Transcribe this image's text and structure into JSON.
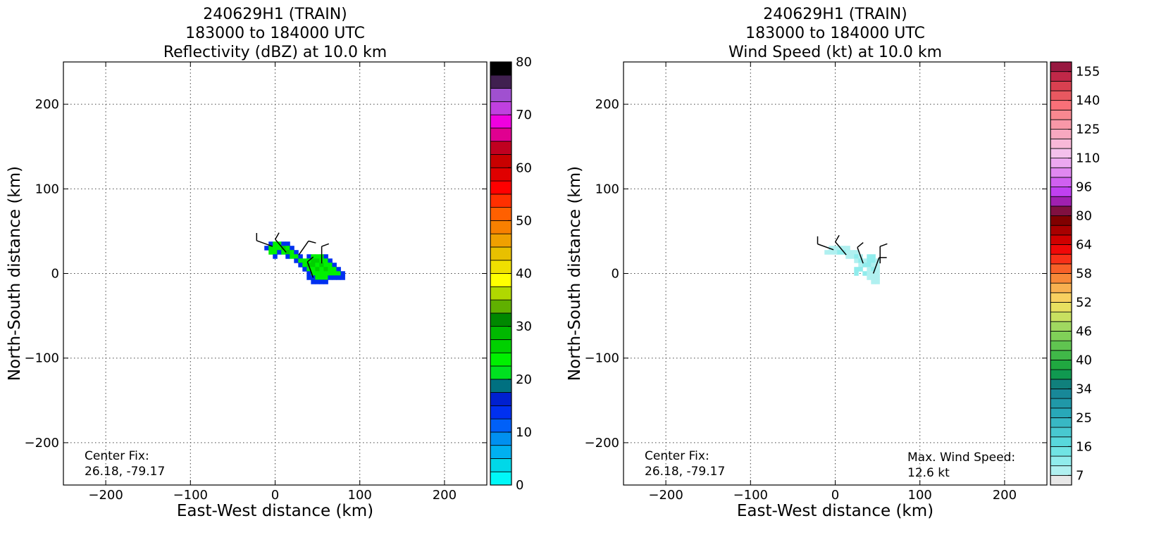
{
  "chart_data": [
    {
      "type": "heatmap",
      "title": [
        "240629H1 (TRAIN)",
        "183000 to 184000 UTC",
        "Reflectivity (dBZ) at 10.0 km"
      ],
      "xlabel": "East-West distance (km)",
      "ylabel": "North-South distance (km)",
      "xlim": [
        -250,
        250
      ],
      "ylim": [
        -250,
        250
      ],
      "xticks": [
        {
          "value": -200,
          "label": "−200"
        },
        {
          "value": -100,
          "label": "−100"
        },
        0,
        100,
        200
      ],
      "yticks": [
        {
          "value": -200,
          "label": "−200"
        },
        {
          "value": -100,
          "label": "−100"
        },
        0,
        100,
        200
      ],
      "grid": true,
      "cells": {
        "x": [
          -5,
          0,
          5,
          10,
          15,
          -10,
          -5,
          0,
          5,
          10,
          15,
          20,
          -5,
          0,
          5,
          10,
          15,
          20,
          25,
          0,
          15,
          20,
          25,
          30,
          40,
          45,
          50,
          55,
          60,
          25,
          30,
          35,
          40,
          45,
          50,
          55,
          60,
          65,
          30,
          35,
          40,
          45,
          50,
          55,
          60,
          65,
          70,
          35,
          40,
          45,
          50,
          55,
          60,
          65,
          70,
          75,
          40,
          45,
          50,
          55,
          60,
          65,
          70,
          75,
          80,
          40,
          45,
          50,
          55,
          60,
          65,
          70,
          75,
          80,
          45,
          50,
          55,
          60
        ],
        "y": [
          35,
          35,
          35,
          35,
          35,
          30,
          30,
          30,
          30,
          30,
          30,
          30,
          25,
          25,
          25,
          25,
          25,
          25,
          25,
          20,
          20,
          20,
          20,
          20,
          20,
          20,
          20,
          20,
          20,
          15,
          15,
          15,
          15,
          15,
          15,
          15,
          15,
          15,
          10,
          10,
          10,
          10,
          10,
          10,
          10,
          10,
          10,
          5,
          5,
          5,
          5,
          5,
          5,
          5,
          5,
          5,
          0,
          0,
          0,
          0,
          0,
          0,
          0,
          0,
          0,
          -5,
          -5,
          -5,
          -5,
          -5,
          -5,
          -5,
          -5,
          -5,
          -10,
          -10,
          -10,
          -10
        ],
        "values": [
          14,
          24,
          24,
          14,
          14,
          14,
          24,
          24,
          24,
          26,
          24,
          14,
          24,
          24,
          14,
          24,
          26,
          24,
          14,
          14,
          14,
          24,
          24,
          14,
          14,
          24,
          24,
          24,
          14,
          14,
          24,
          24,
          24,
          26,
          26,
          24,
          24,
          14,
          14,
          24,
          26,
          26,
          24,
          26,
          24,
          24,
          14,
          14,
          24,
          24,
          26,
          24,
          26,
          24,
          24,
          14,
          14,
          24,
          24,
          24,
          24,
          24,
          24,
          24,
          14,
          14,
          14,
          24,
          24,
          24,
          14,
          14,
          14,
          14,
          14,
          14,
          14,
          14
        ]
      },
      "barbs": {
        "x": [
          -3,
          13,
          28,
          45,
          55
        ],
        "y": [
          32,
          25,
          22,
          -5,
          12
        ],
        "direction": [
          290,
          320,
          35,
          340,
          0
        ],
        "speed": [
          10,
          10,
          10,
          10,
          10
        ]
      },
      "colorbar": {
        "clim": [
          0,
          80
        ],
        "ticks": [
          0,
          10,
          20,
          30,
          40,
          50,
          60,
          70,
          80
        ],
        "colors": [
          "#00f8f8",
          "#00d8e8",
          "#00b0f0",
          "#0090f0",
          "#0060f8",
          "#0030f0",
          "#0020d0",
          "#007080",
          "#00e020",
          "#00f000",
          "#00d000",
          "#00b800",
          "#008800",
          "#60b000",
          "#b0d800",
          "#ffff00",
          "#f0e000",
          "#e8c000",
          "#f0a000",
          "#f88000",
          "#ff6000",
          "#ff3000",
          "#ff0000",
          "#e00000",
          "#c80000",
          "#c00020",
          "#e00090",
          "#f000e0",
          "#c040e0",
          "#a050d0",
          "#402050",
          "#000000"
        ]
      },
      "center_fix": [
        "Center Fix:",
        "26.18, -79.17"
      ]
    },
    {
      "type": "heatmap",
      "title": [
        "240629H1 (TRAIN)",
        "183000 to 184000 UTC",
        "Wind Speed (kt) at 10.0 km"
      ],
      "xlabel": "East-West distance (km)",
      "ylabel": "North-South distance (km)",
      "xlim": [
        -250,
        250
      ],
      "ylim": [
        -250,
        250
      ],
      "xticks": [
        {
          "value": -200,
          "label": "−200"
        },
        {
          "value": -100,
          "label": "−100"
        },
        0,
        100,
        200
      ],
      "yticks": [
        {
          "value": -200,
          "label": "−200"
        },
        {
          "value": -100,
          "label": "−100"
        },
        0,
        100,
        200
      ],
      "grid": true,
      "cells": {
        "x": [
          -5,
          0,
          5,
          10,
          15,
          -10,
          -5,
          0,
          5,
          10,
          15,
          20,
          25,
          15,
          20,
          25,
          30,
          40,
          45,
          25,
          30,
          35,
          40,
          45,
          50,
          30,
          35,
          40,
          45,
          50,
          25,
          30,
          40,
          45,
          50,
          25,
          35,
          40,
          45,
          50,
          40,
          45,
          50,
          45,
          50
        ],
        "y": [
          30,
          30,
          30,
          30,
          30,
          25,
          25,
          25,
          25,
          25,
          25,
          25,
          25,
          20,
          20,
          20,
          20,
          20,
          20,
          15,
          15,
          15,
          15,
          15,
          15,
          10,
          10,
          10,
          10,
          10,
          5,
          5,
          5,
          5,
          5,
          0,
          0,
          0,
          0,
          0,
          -5,
          -5,
          -5,
          -10,
          -10
        ],
        "values": [
          9,
          9,
          9,
          9,
          9,
          8,
          9,
          9,
          11,
          10,
          9,
          9,
          9,
          9,
          9,
          11,
          9,
          10,
          11,
          9,
          11,
          9,
          11,
          12,
          9,
          9,
          10,
          11,
          9,
          9,
          12,
          12,
          9,
          10,
          9,
          12,
          11,
          9,
          9,
          9,
          9,
          9,
          9,
          9,
          9
        ]
      },
      "barbs": {
        "x": [
          -2,
          13,
          33,
          45,
          53
        ],
        "y": [
          28,
          22,
          12,
          0,
          12
        ],
        "direction": [
          290,
          320,
          340,
          20,
          0
        ],
        "speed": [
          10,
          10,
          10,
          10,
          10
        ]
      },
      "colorbar": {
        "ticks": [
          7,
          16,
          25,
          34,
          40,
          46,
          52,
          58,
          64,
          80,
          96,
          110,
          125,
          140,
          155
        ],
        "colors": [
          "#e8e8e8",
          "#b0f0f0",
          "#90ecec",
          "#70e4e4",
          "#58d8dc",
          "#48c8d0",
          "#38b8c4",
          "#28a8b8",
          "#2098a8",
          "#188898",
          "#10807c",
          "#109850",
          "#20a840",
          "#40b848",
          "#60c450",
          "#80d058",
          "#a0d860",
          "#c8e060",
          "#e8e060",
          "#f8d060",
          "#f8b050",
          "#f88838",
          "#f86028",
          "#f83018",
          "#f00808",
          "#d00000",
          "#a80000",
          "#800000",
          "#801040",
          "#a020b0",
          "#c040f0",
          "#d060f0",
          "#e088f0",
          "#eca8f0",
          "#f4c0ec",
          "#f8b8d8",
          "#f8a8c0",
          "#f898a8",
          "#f88890",
          "#f87078",
          "#e85860",
          "#d84050",
          "#c02848",
          "#981840"
        ]
      },
      "center_fix": [
        "Center Fix:",
        "26.18, -79.17"
      ],
      "max_wind": [
        "Max. Wind Speed:",
        "12.6 kt"
      ]
    }
  ]
}
